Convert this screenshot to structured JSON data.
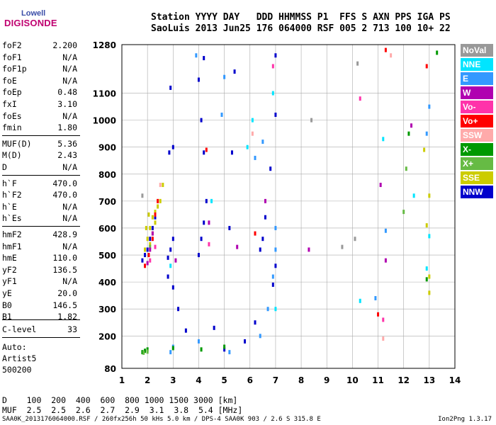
{
  "logo": {
    "line1": "Lowell",
    "line2": "DIGISONDE"
  },
  "header": {
    "line1": "Station YYYY DAY   DDD HHMMSS P1  FFS S AXN PPS IGA PS",
    "line2": "SaoLuis 2013 Jun25 176 064000 RSF 005 2 713 100 10+ 22"
  },
  "params": [
    {
      "k": "foF2",
      "v": "2.200"
    },
    {
      "k": "foF1",
      "v": "N/A"
    },
    {
      "k": "foF1p",
      "v": "N/A"
    },
    {
      "k": "foE",
      "v": "N/A"
    },
    {
      "k": "foEp",
      "v": "0.48"
    },
    {
      "k": "fxI",
      "v": "3.10"
    },
    {
      "k": "foEs",
      "v": "N/A"
    },
    {
      "k": "fmin",
      "v": "1.80"
    },
    {
      "k": "MUF(D)",
      "v": "5.36"
    },
    {
      "k": "M(D)",
      "v": "2.43"
    },
    {
      "k": "D",
      "v": "N/A"
    },
    {
      "k": "h`F",
      "v": "470.0"
    },
    {
      "k": "h`F2",
      "v": "470.0"
    },
    {
      "k": "h`E",
      "v": "N/A"
    },
    {
      "k": "h`Es",
      "v": "N/A"
    },
    {
      "k": "hmF2",
      "v": "428.9"
    },
    {
      "k": "hmF1",
      "v": "N/A"
    },
    {
      "k": "hmE",
      "v": "110.0"
    },
    {
      "k": "yF2",
      "v": "136.5"
    },
    {
      "k": "yF1",
      "v": "N/A"
    },
    {
      "k": "yE",
      "v": "20.0"
    },
    {
      "k": "B0",
      "v": "146.5"
    },
    {
      "k": "B1",
      "v": "1.82"
    }
  ],
  "clevel": {
    "k": "C-level",
    "v": "33"
  },
  "auto": {
    "line1": "Auto:",
    "line2": "Artist5",
    "line3": "500200"
  },
  "muf_table": {
    "row1": "D    100  200  400  600  800 1000 1500 3000 [km]",
    "row2": "MUF  2.5  2.5  2.6  2.7  2.9  3.1  3.8  5.4 [MHz]"
  },
  "footer": {
    "left": "SAA0K_2013176064000.RSF / 260fx256h 50 kHs 5.0 km / DPS-4 SAA0K 903 / 2.6 S 315.8 E",
    "right": "Ion2Png 1.3.17"
  },
  "legend": [
    {
      "label": "NoVal",
      "color": "#999999"
    },
    {
      "label": "NNE",
      "color": "#00e5ff"
    },
    {
      "label": "E",
      "color": "#3399ff"
    },
    {
      "label": "W",
      "color": "#b000b0"
    },
    {
      "label": "Vo-",
      "color": "#ff33aa"
    },
    {
      "label": "Vo+",
      "color": "#ff0000"
    },
    {
      "label": "SSW",
      "color": "#ffaaaa"
    },
    {
      "label": "X-",
      "color": "#009900"
    },
    {
      "label": "X+",
      "color": "#66bb44"
    },
    {
      "label": "SSE",
      "color": "#cccc00"
    },
    {
      "label": "NNW",
      "color": "#0000cc"
    }
  ],
  "chart_data": {
    "type": "scatter",
    "x_ticks": [
      1,
      2,
      3,
      4,
      5,
      6,
      7,
      8,
      9,
      10,
      11,
      12,
      13,
      14
    ],
    "y_ticks": [
      80,
      200,
      300,
      400,
      500,
      600,
      700,
      800,
      900,
      1000,
      1100,
      1280
    ],
    "xlim": [
      1,
      14
    ],
    "ylim": [
      80,
      1280
    ],
    "grid": true,
    "legend_position": "right",
    "traces": [
      {
        "name": "NNW",
        "color": "#0000cc",
        "points": [
          [
            1.8,
            480
          ],
          [
            1.9,
            500
          ],
          [
            2.0,
            520
          ],
          [
            2.1,
            560
          ],
          [
            2.2,
            600
          ],
          [
            2.3,
            640
          ],
          [
            2.8,
            490
          ],
          [
            2.9,
            520
          ],
          [
            3.0,
            560
          ],
          [
            2.85,
            880
          ],
          [
            3.0,
            900
          ],
          [
            2.9,
            1120
          ],
          [
            4.0,
            500
          ],
          [
            4.1,
            560
          ],
          [
            4.2,
            620
          ],
          [
            4.3,
            700
          ],
          [
            4.2,
            880
          ],
          [
            4.1,
            1000
          ],
          [
            4.0,
            1150
          ],
          [
            4.2,
            1230
          ],
          [
            5.2,
            600
          ],
          [
            5.3,
            880
          ],
          [
            5.4,
            1180
          ],
          [
            6.4,
            520
          ],
          [
            6.5,
            560
          ],
          [
            6.6,
            640
          ],
          [
            6.8,
            820
          ],
          [
            7.0,
            1020
          ],
          [
            7.0,
            1240
          ],
          [
            3.2,
            300
          ],
          [
            3.0,
            380
          ],
          [
            2.8,
            420
          ],
          [
            3.5,
            220
          ],
          [
            4.6,
            230
          ],
          [
            5.0,
            150
          ],
          [
            5.8,
            180
          ],
          [
            6.2,
            250
          ],
          [
            6.9,
            390
          ],
          [
            7.0,
            460
          ]
        ]
      },
      {
        "name": "SSE",
        "color": "#cccc00",
        "points": [
          [
            1.9,
            520
          ],
          [
            2.0,
            560
          ],
          [
            2.1,
            600
          ],
          [
            2.2,
            640
          ],
          [
            2.3,
            660
          ],
          [
            2.4,
            680
          ],
          [
            2.1,
            540
          ],
          [
            2.2,
            580
          ],
          [
            2.3,
            620
          ],
          [
            1.95,
            600
          ],
          [
            2.05,
            650
          ],
          [
            2.5,
            700
          ],
          [
            2.6,
            760
          ],
          [
            12.9,
            610
          ],
          [
            13.0,
            420
          ],
          [
            13.0,
            360
          ],
          [
            12.8,
            890
          ],
          [
            13.0,
            720
          ]
        ]
      },
      {
        "name": "E",
        "color": "#3399ff",
        "points": [
          [
            2.9,
            140
          ],
          [
            3.0,
            160
          ],
          [
            4.0,
            180
          ],
          [
            5.2,
            140
          ],
          [
            6.4,
            200
          ],
          [
            6.7,
            300
          ],
          [
            6.9,
            420
          ],
          [
            7.0,
            520
          ],
          [
            7.0,
            600
          ],
          [
            6.2,
            860
          ],
          [
            6.5,
            920
          ],
          [
            4.9,
            1020
          ],
          [
            5.0,
            1160
          ],
          [
            3.9,
            1240
          ],
          [
            11.3,
            590
          ],
          [
            10.9,
            340
          ],
          [
            12.9,
            950
          ],
          [
            13.0,
            1050
          ]
        ]
      },
      {
        "name": "X-",
        "color": "#009900",
        "points": [
          [
            1.8,
            140
          ],
          [
            1.9,
            145
          ],
          [
            2.0,
            150
          ],
          [
            3.0,
            155
          ],
          [
            4.1,
            150
          ],
          [
            5.0,
            160
          ],
          [
            12.2,
            950
          ],
          [
            13.3,
            1250
          ],
          [
            12.9,
            410
          ]
        ]
      },
      {
        "name": "X+",
        "color": "#66bb44",
        "points": [
          [
            1.85,
            138
          ],
          [
            2.0,
            142
          ],
          [
            2.1,
            530
          ],
          [
            12.1,
            820
          ],
          [
            12.0,
            660
          ]
        ]
      },
      {
        "name": "W",
        "color": "#b000b0",
        "points": [
          [
            2.0,
            470
          ],
          [
            2.1,
            520
          ],
          [
            2.2,
            580
          ],
          [
            3.1,
            480
          ],
          [
            4.4,
            620
          ],
          [
            5.5,
            530
          ],
          [
            6.6,
            700
          ],
          [
            8.3,
            520
          ],
          [
            11.1,
            760
          ],
          [
            11.3,
            480
          ],
          [
            12.3,
            980
          ]
        ]
      },
      {
        "name": "Vo+",
        "color": "#ff0000",
        "points": [
          [
            1.9,
            460
          ],
          [
            2.05,
            500
          ],
          [
            2.2,
            560
          ],
          [
            2.3,
            650
          ],
          [
            2.4,
            700
          ],
          [
            4.3,
            890
          ],
          [
            6.2,
            580
          ],
          [
            11.0,
            280
          ],
          [
            11.3,
            1260
          ],
          [
            12.9,
            1200
          ]
        ]
      },
      {
        "name": "Vo-",
        "color": "#ff33aa",
        "points": [
          [
            2.1,
            480
          ],
          [
            2.3,
            530
          ],
          [
            4.4,
            540
          ],
          [
            6.9,
            1200
          ],
          [
            10.3,
            1080
          ],
          [
            11.2,
            260
          ]
        ]
      },
      {
        "name": "SSW",
        "color": "#ffaaaa",
        "points": [
          [
            2.5,
            760
          ],
          [
            6.1,
            950
          ],
          [
            11.2,
            190
          ],
          [
            11.5,
            1240
          ]
        ]
      },
      {
        "name": "NNE",
        "color": "#00e5ff",
        "points": [
          [
            2.9,
            460
          ],
          [
            4.5,
            700
          ],
          [
            5.9,
            900
          ],
          [
            6.1,
            1000
          ],
          [
            6.9,
            1100
          ],
          [
            7.0,
            300
          ],
          [
            10.3,
            330
          ],
          [
            11.2,
            930
          ],
          [
            12.4,
            720
          ],
          [
            12.9,
            450
          ],
          [
            13.0,
            570
          ]
        ]
      },
      {
        "name": "NoVal",
        "color": "#999999",
        "points": [
          [
            1.8,
            720
          ],
          [
            8.4,
            1000
          ],
          [
            10.2,
            1210
          ],
          [
            9.6,
            530
          ],
          [
            10.1,
            560
          ]
        ]
      }
    ]
  }
}
